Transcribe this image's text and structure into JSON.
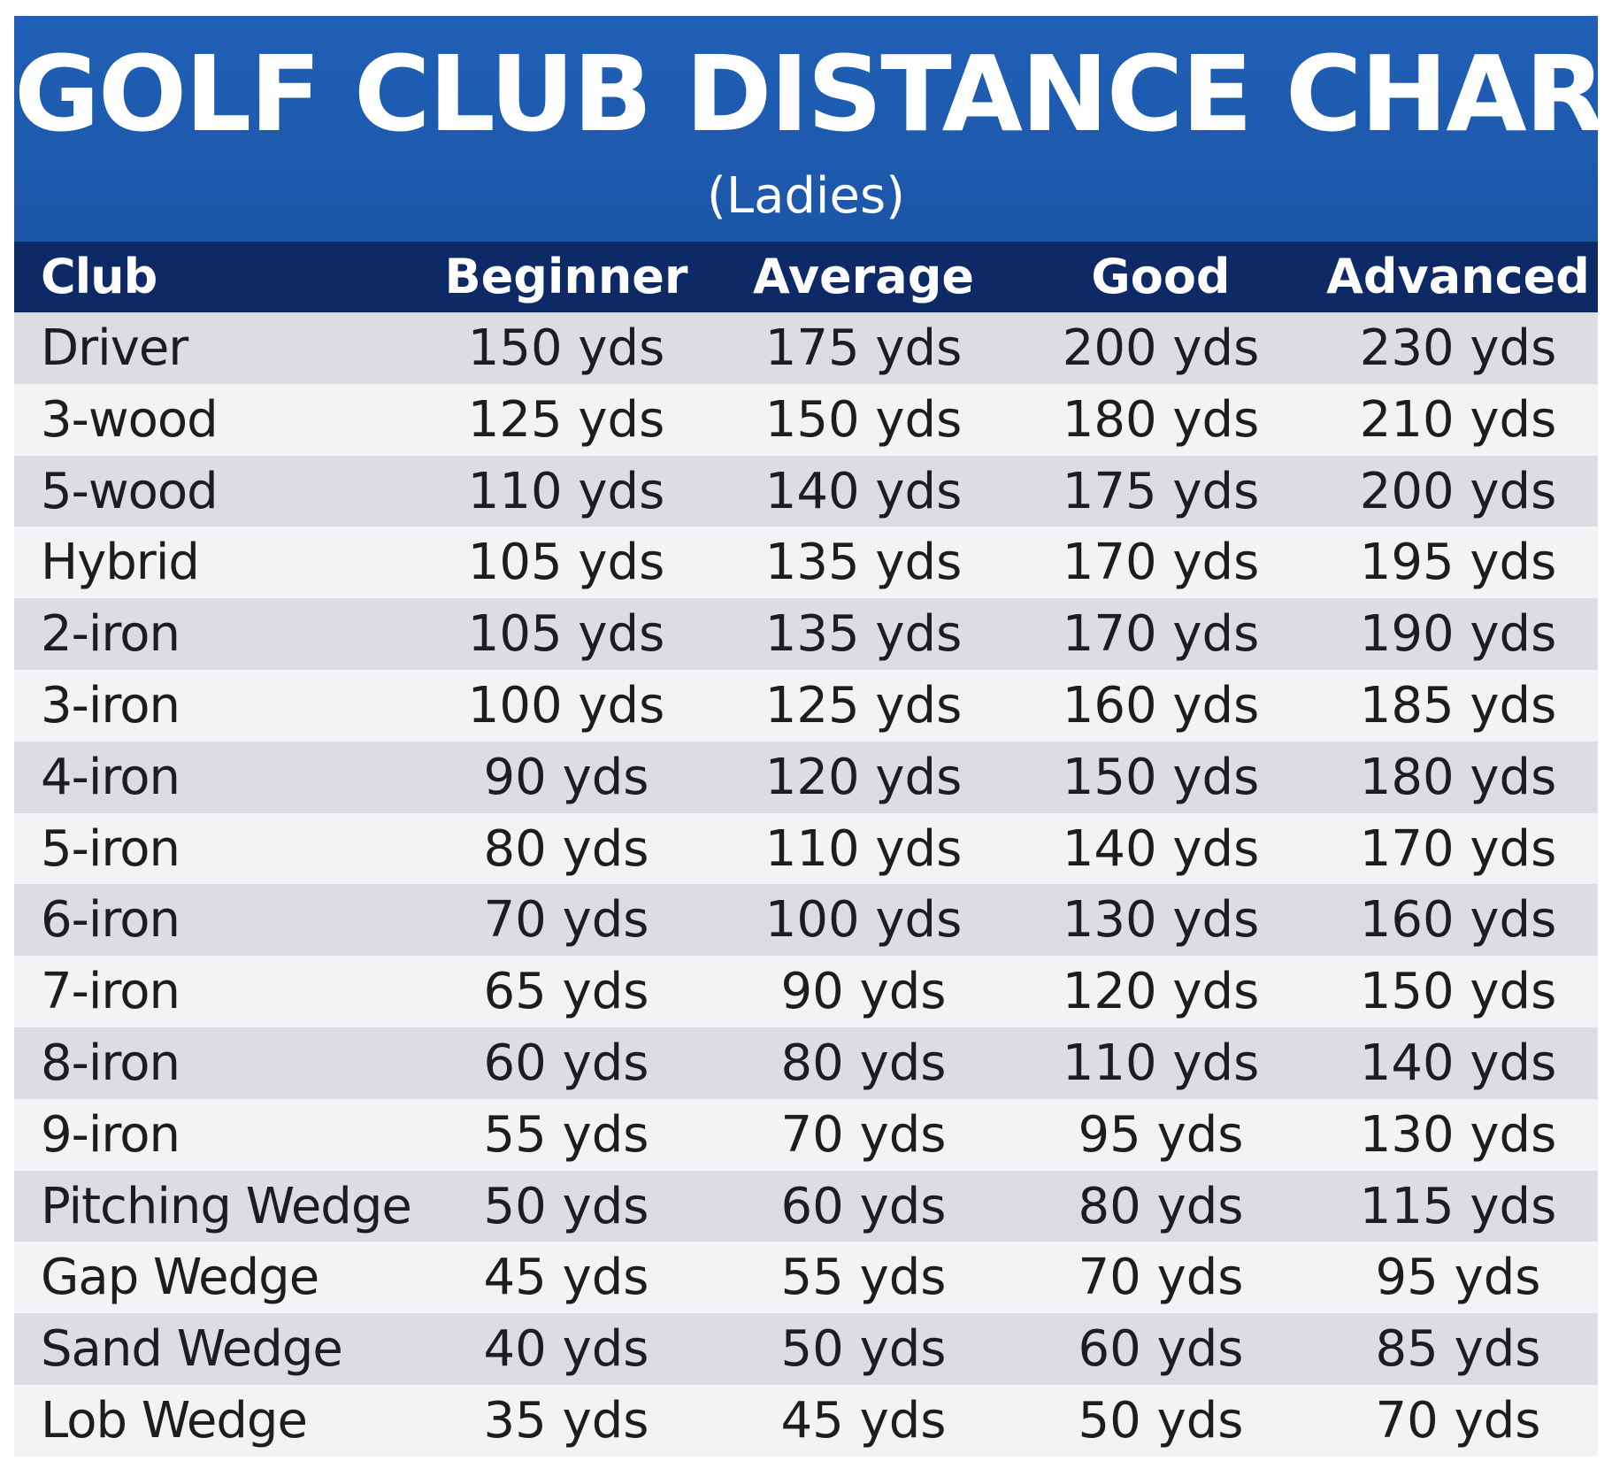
{
  "chart_data": {
    "type": "table",
    "title": "GOLF CLUB DISTANCE CHART",
    "subtitle": "(Ladies)",
    "columns": [
      "Club",
      "Beginner",
      "Average",
      "Good",
      "Advanced"
    ],
    "rows": [
      [
        "Driver",
        "150 yds",
        "175 yds",
        "200 yds",
        "230 yds"
      ],
      [
        "3-wood",
        "125 yds",
        "150 yds",
        "180 yds",
        "210 yds"
      ],
      [
        "5-wood",
        "110 yds",
        "140 yds",
        "175 yds",
        "200 yds"
      ],
      [
        "Hybrid",
        "105 yds",
        "135 yds",
        "170 yds",
        "195 yds"
      ],
      [
        "2-iron",
        "105 yds",
        "135 yds",
        "170 yds",
        "190 yds"
      ],
      [
        "3-iron",
        "100 yds",
        "125 yds",
        "160 yds",
        "185 yds"
      ],
      [
        "4-iron",
        "90 yds",
        "120 yds",
        "150 yds",
        "180 yds"
      ],
      [
        "5-iron",
        "80 yds",
        "110 yds",
        "140 yds",
        "170 yds"
      ],
      [
        "6-iron",
        "70 yds",
        "100 yds",
        "130 yds",
        "160 yds"
      ],
      [
        "7-iron",
        "65 yds",
        "90 yds",
        "120 yds",
        "150 yds"
      ],
      [
        "8-iron",
        "60 yds",
        "80 yds",
        "110 yds",
        "140 yds"
      ],
      [
        "9-iron",
        "55 yds",
        "70 yds",
        "95 yds",
        "130 yds"
      ],
      [
        "Pitching Wedge",
        "50 yds",
        "60 yds",
        "80 yds",
        "115 yds"
      ],
      [
        "Gap Wedge",
        "45 yds",
        "55 yds",
        "70 yds",
        "95 yds"
      ],
      [
        "Sand Wedge",
        "40 yds",
        "50 yds",
        "60 yds",
        "85 yds"
      ],
      [
        "Lob Wedge",
        "35 yds",
        "45 yds",
        "50 yds",
        "70 yds"
      ]
    ]
  },
  "colors": {
    "banner": "#1f5bb0",
    "header_row": "#0e2a66",
    "row_shade": "#dcdde0",
    "row_light": "#f3f3f5",
    "text": "#1d1d1f"
  }
}
